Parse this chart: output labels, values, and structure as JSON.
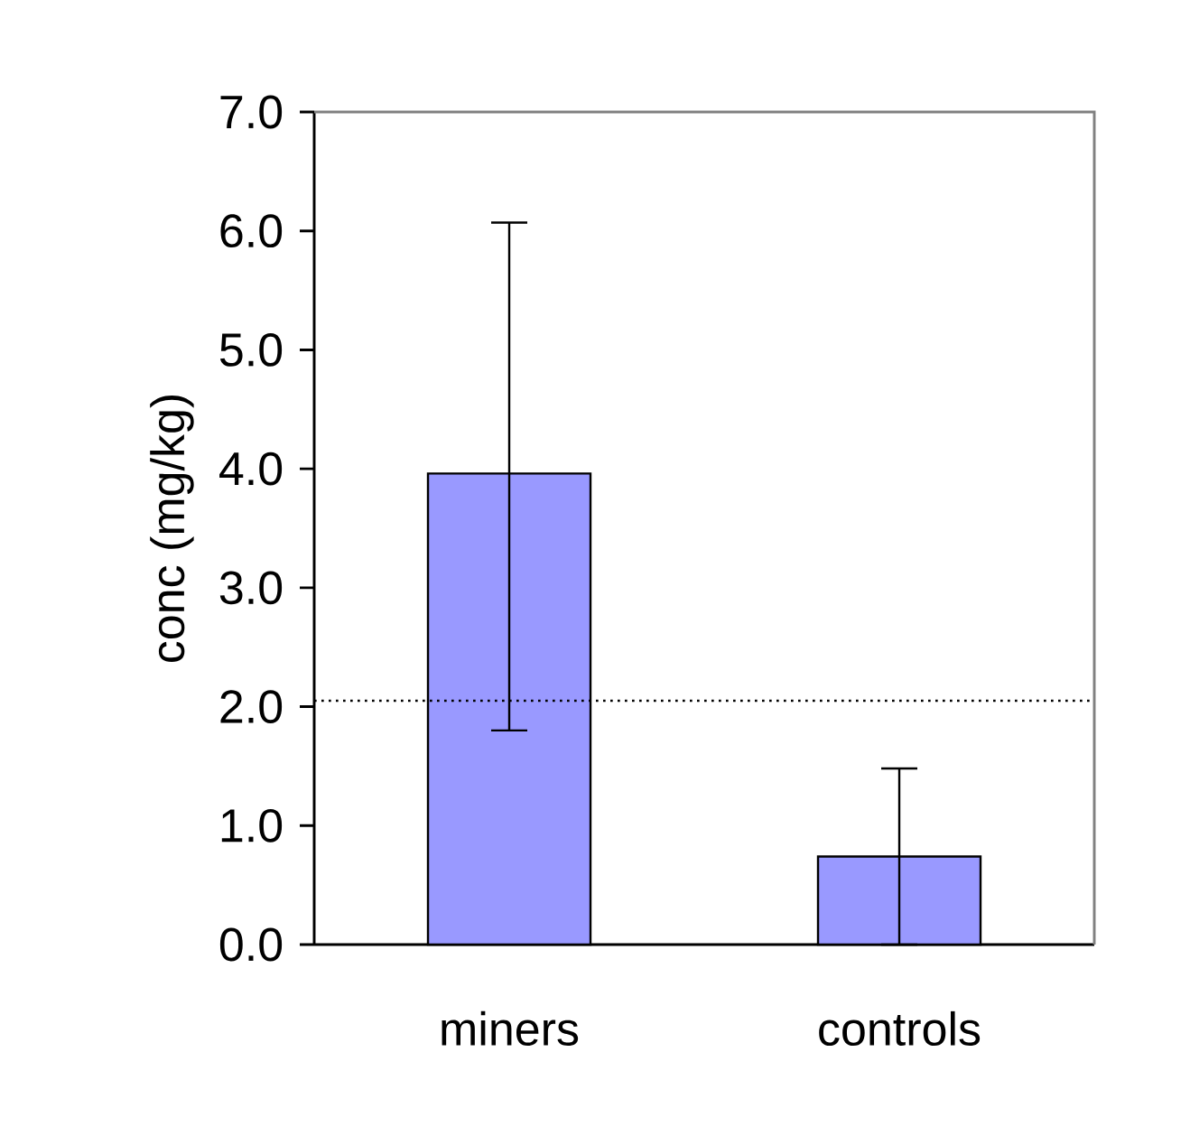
{
  "chart_data": {
    "type": "bar",
    "categories": [
      "miners",
      "controls"
    ],
    "values": [
      3.96,
      0.74
    ],
    "color": "#9999ff",
    "errors": [
      [
        1.8,
        6.07
      ],
      [
        0,
        1.48
      ]
    ],
    "ylabel": "conc (mg/kg)",
    "ylim": [
      0,
      7
    ],
    "yticks": [
      {
        "value": 0,
        "label": "0.0"
      },
      {
        "value": 1,
        "label": "1.0"
      },
      {
        "value": 2,
        "label": "2.0"
      },
      {
        "value": 3,
        "label": "3.0"
      },
      {
        "value": 4,
        "label": "4.0"
      },
      {
        "value": 5,
        "label": "5.0"
      },
      {
        "value": 6,
        "label": "6.0"
      },
      {
        "value": 7,
        "label": "7.0"
      }
    ],
    "ref_lines": [
      {
        "axis": "y",
        "value": 2.05,
        "line_style": "dotted",
        "color": "#000000"
      }
    ]
  }
}
